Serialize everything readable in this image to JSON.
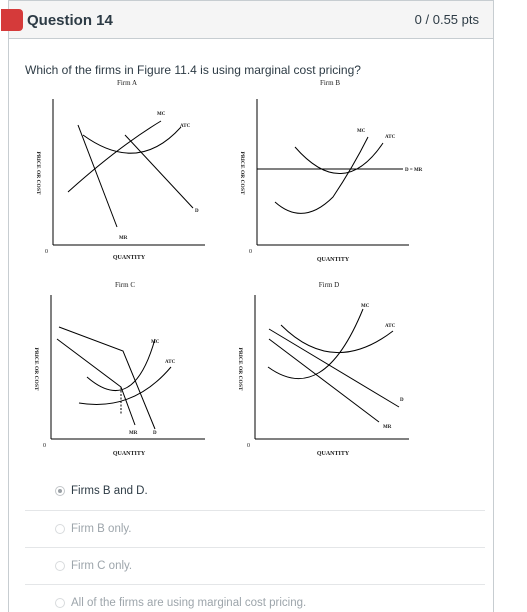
{
  "question": {
    "title": "Question 14",
    "points": "0 / 0.55 pts",
    "text": "Which of the firms in Figure 11.4 is using marginal cost pricing?"
  },
  "figure": {
    "panels": [
      {
        "title": "Firm A",
        "ylabel": "PRICE OR COST",
        "xlabel": "QUANTITY",
        "curves": [
          "MC",
          "ATC",
          "D",
          "MR"
        ]
      },
      {
        "title": "Firm B",
        "ylabel": "PRICE OR COST",
        "xlabel": "QUANTITY",
        "curves": [
          "MC",
          "ATC",
          "D = MR"
        ]
      },
      {
        "title": "Firm C",
        "ylabel": "PRICE OR COST",
        "xlabel": "QUANTITY",
        "curves": [
          "MC",
          "ATC",
          "MR",
          "D"
        ]
      },
      {
        "title": "Firm D",
        "ylabel": "PRICE OR COST",
        "xlabel": "QUANTITY",
        "curves": [
          "MC",
          "ATC",
          "D",
          "MR"
        ]
      }
    ],
    "origin": "0"
  },
  "answers": [
    {
      "label": "Firms B and D.",
      "selected": true
    },
    {
      "label": "Firm B only.",
      "selected": false
    },
    {
      "label": "Firm C only.",
      "selected": false
    },
    {
      "label": "All of the firms are using marginal cost pricing.",
      "selected": false
    }
  ],
  "colors": {
    "flag": "#d53a3a",
    "border": "#c7cdd1",
    "text": "#2d3b45",
    "dim_text": "#9da5ab"
  }
}
